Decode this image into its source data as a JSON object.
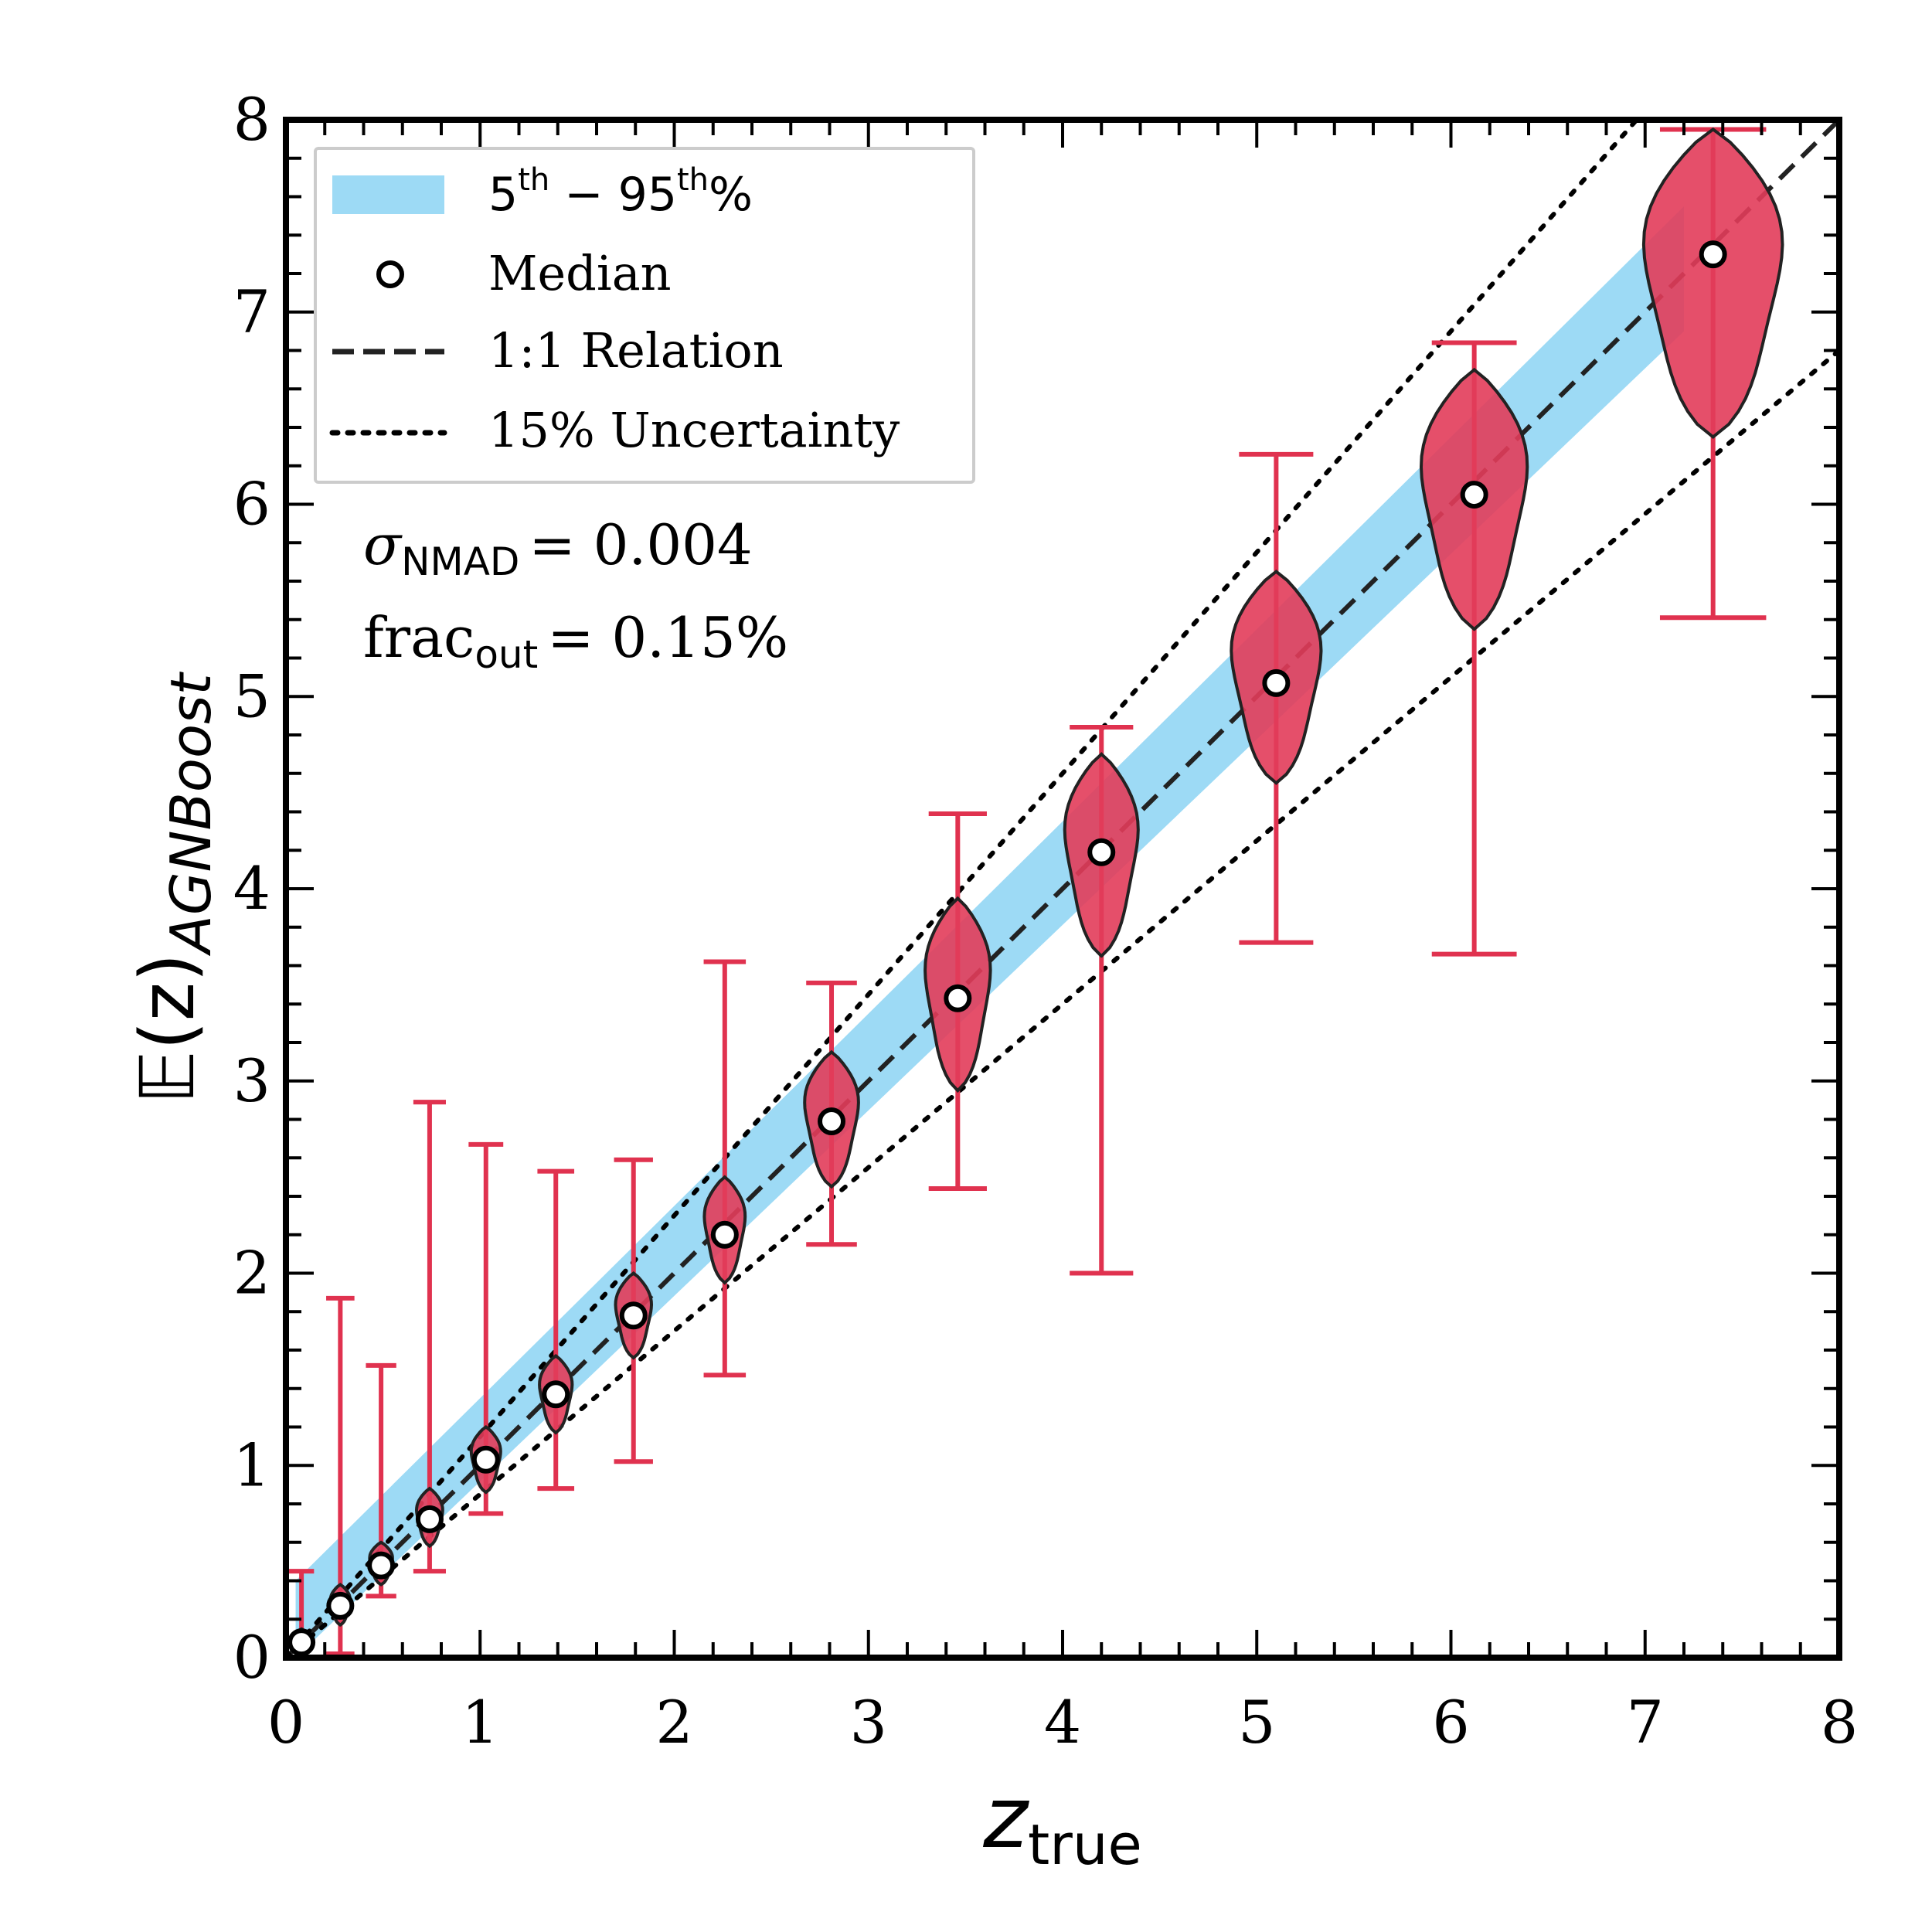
{
  "chart_data": {
    "type": "violin",
    "xlabel": "z",
    "xlabel_sub": "true",
    "ylabel": "𝔼(z)",
    "ylabel_sub": "AGNBoost",
    "xlim": [
      0,
      8
    ],
    "ylim": [
      0,
      8
    ],
    "xticks": [
      "0",
      "1",
      "2",
      "3",
      "4",
      "5",
      "6",
      "7",
      "8"
    ],
    "yticks": [
      "0",
      "1",
      "2",
      "3",
      "4",
      "5",
      "6",
      "7",
      "8"
    ],
    "stats": {
      "sigma_symbol": "σ",
      "sigma_sub": "NMAD",
      "sigma_value": "= 0.004",
      "frac_symbol": "frac",
      "frac_sub": "out",
      "frac_value": "= 0.15%"
    },
    "legend": {
      "band": {
        "base": "5",
        "sup1": "th",
        "mid": " − 95",
        "sup2": "th",
        "end": "%"
      },
      "median": "Median",
      "relation": "1:1 Relation",
      "uncertainty": "15% Uncertainty"
    },
    "colors": {
      "band": "#9ddaf5",
      "violin": "#e23c5a",
      "errorbar": "#e0324f",
      "line": "#222222"
    },
    "band": {
      "x": [
        0.05,
        7.2
      ],
      "lower_offset": 0.3,
      "upper_offset": 0.35
    },
    "bins": [
      {
        "x": 0.08,
        "median": 0.08,
        "min": 0.0,
        "max": 0.45,
        "body_lo": 0.03,
        "body_hi": 0.15,
        "width": 0.09
      },
      {
        "x": 0.28,
        "median": 0.27,
        "min": 0.02,
        "max": 1.87,
        "body_lo": 0.17,
        "body_hi": 0.38,
        "width": 0.12
      },
      {
        "x": 0.49,
        "median": 0.48,
        "min": 0.32,
        "max": 1.52,
        "body_lo": 0.38,
        "body_hi": 0.6,
        "width": 0.14
      },
      {
        "x": 0.74,
        "median": 0.72,
        "min": 0.45,
        "max": 2.89,
        "body_lo": 0.58,
        "body_hi": 0.88,
        "width": 0.16
      },
      {
        "x": 1.03,
        "median": 1.03,
        "min": 0.75,
        "max": 2.67,
        "body_lo": 0.86,
        "body_hi": 1.2,
        "width": 0.18
      },
      {
        "x": 1.39,
        "median": 1.37,
        "min": 0.88,
        "max": 2.53,
        "body_lo": 1.17,
        "body_hi": 1.57,
        "width": 0.2
      },
      {
        "x": 1.79,
        "median": 1.78,
        "min": 1.02,
        "max": 2.59,
        "body_lo": 1.56,
        "body_hi": 2.0,
        "width": 0.22
      },
      {
        "x": 2.26,
        "median": 2.2,
        "min": 1.47,
        "max": 3.62,
        "body_lo": 1.95,
        "body_hi": 2.5,
        "width": 0.25
      },
      {
        "x": 2.81,
        "median": 2.79,
        "min": 2.15,
        "max": 3.51,
        "body_lo": 2.45,
        "body_hi": 3.15,
        "width": 0.33
      },
      {
        "x": 3.46,
        "median": 3.43,
        "min": 2.44,
        "max": 4.39,
        "body_lo": 2.95,
        "body_hi": 3.95,
        "width": 0.4
      },
      {
        "x": 4.2,
        "median": 4.19,
        "min": 2.0,
        "max": 4.84,
        "body_lo": 3.65,
        "body_hi": 4.7,
        "width": 0.45
      },
      {
        "x": 5.1,
        "median": 5.07,
        "min": 3.72,
        "max": 6.26,
        "body_lo": 4.55,
        "body_hi": 5.65,
        "width": 0.55
      },
      {
        "x": 6.12,
        "median": 6.05,
        "min": 3.66,
        "max": 6.84,
        "body_lo": 5.35,
        "body_hi": 6.7,
        "width": 0.65
      },
      {
        "x": 7.35,
        "median": 7.3,
        "min": 5.41,
        "max": 7.95,
        "body_lo": 6.35,
        "body_hi": 7.95,
        "width": 0.85
      }
    ]
  }
}
